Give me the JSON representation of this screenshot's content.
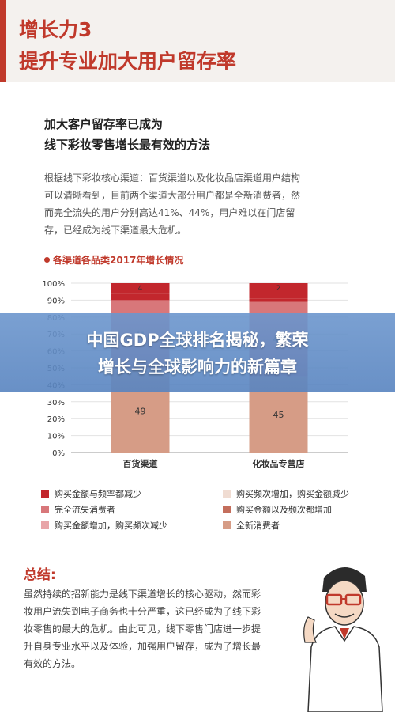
{
  "header": {
    "line1": "增长力3",
    "line2": "提升专业加大用户留存率"
  },
  "subtitle": {
    "line1": "加大客户留存率已成为",
    "line2": "线下彩妆零售增长最有效的方法"
  },
  "intro_lines": [
    "根据线下彩妆核心渠道：百货渠道以及化妆品店渠道用户结构",
    "可以清晰看到，目前两个渠道大部分用户都是全新消费者，然",
    "而完全流失的用户分别高达41%、44%，用户难以在门店留",
    "存，已经成为线下渠道最大危机。"
  ],
  "banner": {
    "line1": "中国GDP全球排名揭秘，繁荣",
    "line2": "增长与全球影响力的新篇章"
  },
  "colors": {
    "accent": "#c0392b",
    "banner": "#6c96cd"
  },
  "chart_data": {
    "type": "bar",
    "stacked": true,
    "title": "各渠道各品类2017年增长情况",
    "categories": [
      "百货渠道",
      "化妆品专营店"
    ],
    "ylim": [
      0,
      100
    ],
    "yticks": [
      "0%",
      "10%",
      "20%",
      "30%",
      "40%",
      "50%",
      "60%",
      "70%",
      "80%",
      "90%",
      "100%"
    ],
    "series": [
      {
        "name": "全新消费者",
        "values": [
          49,
          45
        ],
        "color": "#d69c86"
      },
      {
        "name": "购买金额以及频次都增加",
        "values": [
          0,
          0
        ],
        "color": "#c46e5c"
      },
      {
        "name": "购买频次增加，购买金额减少",
        "values": [
          0,
          0
        ],
        "color": "#f0dcd2"
      },
      {
        "name": "完全流失消费者",
        "values": [
          41,
          44
        ],
        "color": "#d8777a"
      },
      {
        "name": "购买金额增加，购买频次减少",
        "values": [
          0,
          0
        ],
        "color": "#e8a5a8"
      },
      {
        "name": "购买金额与频率都减少",
        "values": [
          4,
          2
        ],
        "color": "#c2272d"
      }
    ],
    "top_labels": [
      "4",
      "2"
    ],
    "grid": true,
    "legend_placement": "bottom"
  },
  "legend": [
    {
      "label": "购买金额与频率都减少",
      "color": "#c2272d"
    },
    {
      "label": "购买频次增加，购买金额减少",
      "color": "#f0dcd2"
    },
    {
      "label": "完全流失消费者",
      "color": "#d8777a"
    },
    {
      "label": "购买金额以及频次都增加",
      "color": "#c46e5c"
    },
    {
      "label": "购买金额增加，购买频次减少",
      "color": "#e8a5a8"
    },
    {
      "label": "全新消费者",
      "color": "#d69c86"
    }
  ],
  "summary": {
    "title": "总结:",
    "lines": [
      "虽然持续的招新能力是线下渠道增长的核心驱动，然而彩",
      "妆用户流失到电子商务也十分严重，这已经成为了线下彩",
      "妆零售的最大的危机。由此可见，线下零售门店进一步提",
      "升自身专业水平以及体验，加强用户留存，成为了增长最",
      "有效的方法。"
    ]
  }
}
